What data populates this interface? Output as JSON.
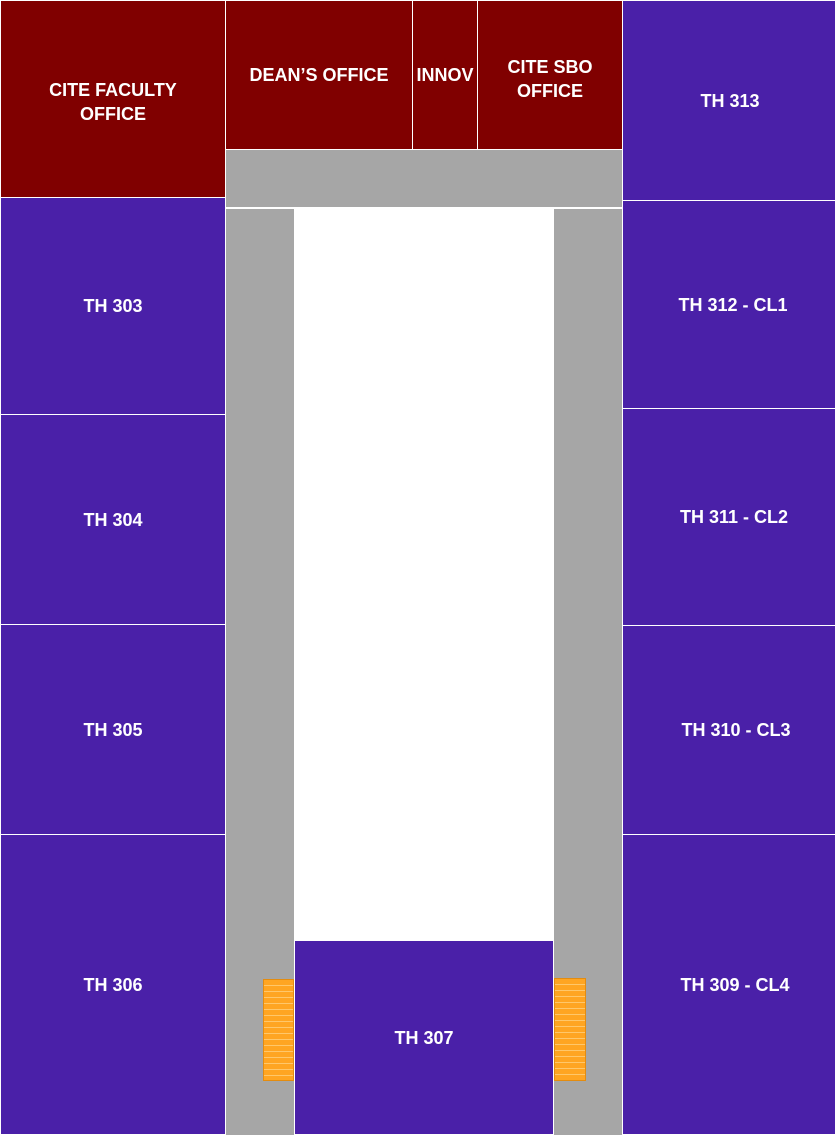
{
  "rooms": {
    "cite_faculty_office": "CITE FACULTY\nOFFICE",
    "deans_office": "DEAN’S OFFICE",
    "innov": "INNOV",
    "cite_sbo_office": "CITE SBO\nOFFICE",
    "th313": "TH 313",
    "th303": "TH 303",
    "th304": "TH 304",
    "th305": "TH 305",
    "th306": "TH 306",
    "th307": "TH 307",
    "th312": "TH 312 - CL1",
    "th311": "TH 311 - CL2",
    "th310": "TH 310 - CL3",
    "th309": "TH 309 - CL4"
  },
  "colors": {
    "classroom": "#4a20a8",
    "office": "#800000",
    "corridor": "#a6a6a6",
    "stairs": "#ffa522",
    "background": "#ffffff"
  }
}
